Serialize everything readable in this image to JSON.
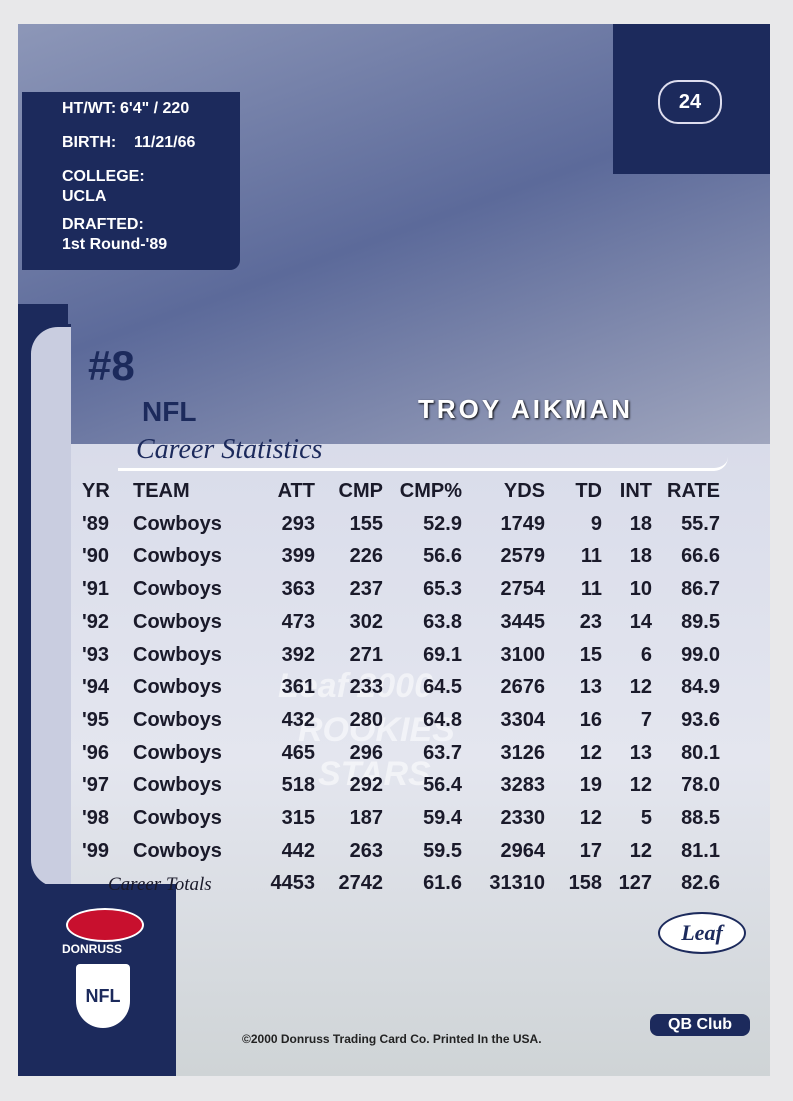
{
  "card_number": "24",
  "bio": [
    {
      "label": "HT/WT:",
      "value": "6'4\" / 220"
    },
    {
      "label": "BIRTH:",
      "value": "11/21/66"
    },
    {
      "label": "COLLEGE:",
      "value": "UCLA"
    },
    {
      "label": "DRAFTED:",
      "value": "1st Round-'89"
    }
  ],
  "jersey": "#8",
  "league": "NFL",
  "player_name": "TROY AIKMAN",
  "section_title": "Career Statistics",
  "table": {
    "columns": [
      "YR",
      "TEAM",
      "ATT",
      "CMP",
      "CMP%",
      "YDS",
      "TD",
      "INT",
      "RATE"
    ],
    "rows": [
      [
        "'89",
        "Cowboys",
        "293",
        "155",
        "52.9",
        "1749",
        "9",
        "18",
        "55.7"
      ],
      [
        "'90",
        "Cowboys",
        "399",
        "226",
        "56.6",
        "2579",
        "11",
        "18",
        "66.6"
      ],
      [
        "'91",
        "Cowboys",
        "363",
        "237",
        "65.3",
        "2754",
        "11",
        "10",
        "86.7"
      ],
      [
        "'92",
        "Cowboys",
        "473",
        "302",
        "63.8",
        "3445",
        "23",
        "14",
        "89.5"
      ],
      [
        "'93",
        "Cowboys",
        "392",
        "271",
        "69.1",
        "3100",
        "15",
        "6",
        "99.0"
      ],
      [
        "'94",
        "Cowboys",
        "361",
        "233",
        "64.5",
        "2676",
        "13",
        "12",
        "84.9"
      ],
      [
        "'95",
        "Cowboys",
        "432",
        "280",
        "64.8",
        "3304",
        "16",
        "7",
        "93.6"
      ],
      [
        "'96",
        "Cowboys",
        "465",
        "296",
        "63.7",
        "3126",
        "12",
        "13",
        "80.1"
      ],
      [
        "'97",
        "Cowboys",
        "518",
        "292",
        "56.4",
        "3283",
        "19",
        "12",
        "78.0"
      ],
      [
        "'98",
        "Cowboys",
        "315",
        "187",
        "59.4",
        "2330",
        "12",
        "5",
        "88.5"
      ],
      [
        "'99",
        "Cowboys",
        "442",
        "263",
        "59.5",
        "2964",
        "17",
        "12",
        "81.1"
      ]
    ],
    "totals_label": "Career Totals",
    "totals": [
      "4453",
      "2742",
      "61.6",
      "31310",
      "158",
      "127",
      "82.6"
    ]
  },
  "watermark": [
    "Leaf 2000",
    "ROOKIES",
    "STARS"
  ],
  "logos": {
    "donruss": "DONRUSS",
    "nfl": "NFL",
    "leaf": "Leaf",
    "qb_club": "QB Club"
  },
  "copyright": "©2000 Donruss Trading Card Co. Printed In the USA."
}
